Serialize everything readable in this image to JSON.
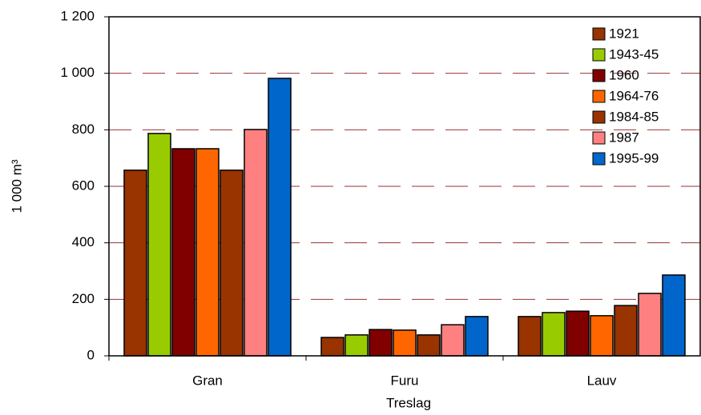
{
  "chart_data": {
    "type": "bar",
    "ylabel": "1 000 m³",
    "xlabel": "Treslag",
    "categories": [
      "Gran",
      "Furu",
      "Lauv"
    ],
    "series": [
      {
        "name": "1921",
        "color": "#993300",
        "values": [
          657,
          65,
          139
        ]
      },
      {
        "name": "1943-45",
        "color": "#99cc00",
        "values": [
          787,
          74,
          153
        ]
      },
      {
        "name": "1960",
        "color": "#800000",
        "values": [
          733,
          93,
          158
        ]
      },
      {
        "name": "1964-76",
        "color": "#ff6600",
        "values": [
          733,
          91,
          142
        ]
      },
      {
        "name": "1984-85",
        "color": "#993300",
        "values": [
          657,
          74,
          178
        ]
      },
      {
        "name": "1987",
        "color": "#ff8080",
        "values": [
          801,
          110,
          221
        ]
      },
      {
        "name": "1995-99",
        "color": "#0066cc",
        "values": [
          982,
          139,
          286
        ]
      }
    ],
    "ylim": [
      0,
      1200
    ],
    "yticks": [
      0,
      200,
      400,
      600,
      800,
      {
        "value": 1000,
        "label": "1 000"
      },
      {
        "value": 1200,
        "label": "1 200"
      }
    ],
    "grid": true,
    "legend": "top-right"
  }
}
